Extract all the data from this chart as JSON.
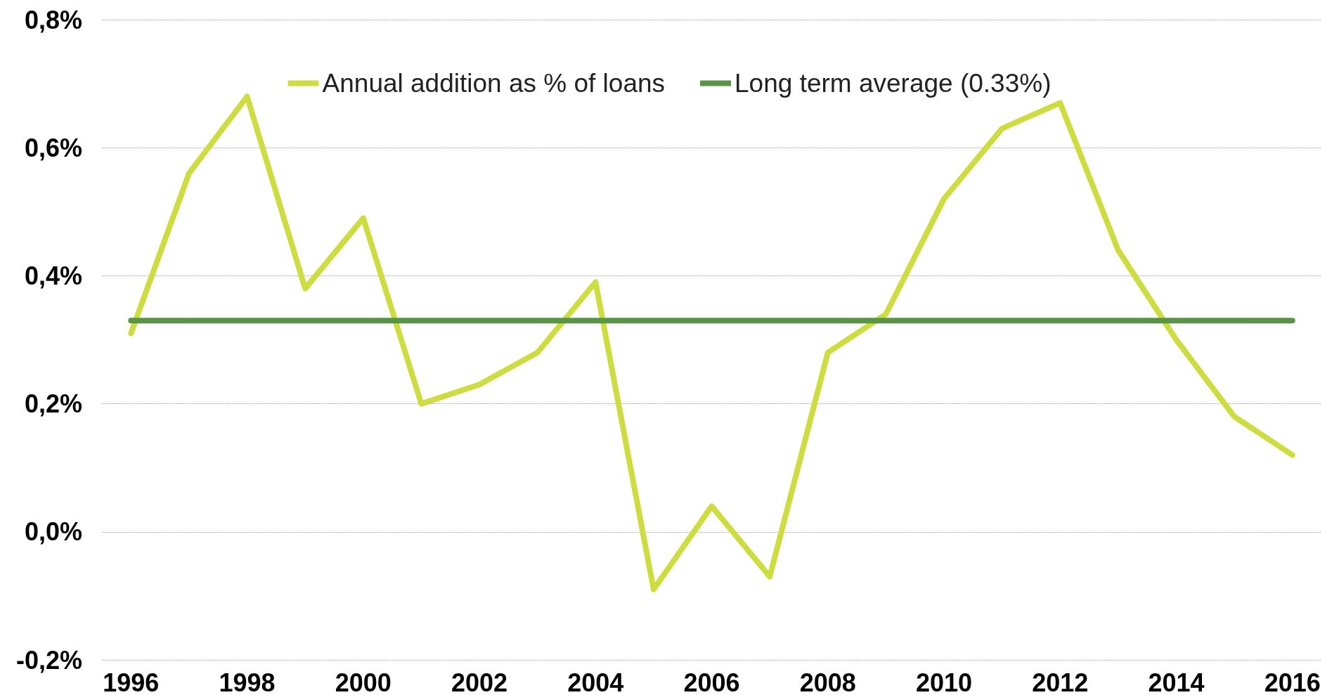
{
  "chart_data": {
    "type": "line",
    "categories": [
      "1996",
      null,
      "1998",
      null,
      "2000",
      null,
      "2002",
      null,
      "2004",
      null,
      "2006",
      null,
      "2008",
      null,
      "2010",
      null,
      "2012",
      null,
      "2014",
      null,
      "2016"
    ],
    "series": [
      {
        "name": "Annual addition as % of loans",
        "color": "#cddc3f",
        "values": [
          0.31,
          0.56,
          0.68,
          0.38,
          0.49,
          0.2,
          0.23,
          0.28,
          0.39,
          -0.09,
          0.04,
          -0.07,
          0.28,
          0.34,
          0.52,
          0.63,
          0.67,
          0.44,
          0.3,
          0.18,
          0.12
        ]
      },
      {
        "name": "Long term average (0.33%)",
        "color": "#5a9446",
        "values": [
          0.33,
          0.33,
          0.33,
          0.33,
          0.33,
          0.33,
          0.33,
          0.33,
          0.33,
          0.33,
          0.33,
          0.33,
          0.33,
          0.33,
          0.33,
          0.33,
          0.33,
          0.33,
          0.33,
          0.33,
          0.33
        ]
      }
    ],
    "ylim": [
      -0.2,
      0.8
    ],
    "yticks": [
      {
        "value": -0.2,
        "label": "-0,2%"
      },
      {
        "value": 0,
        "label": "0,0%"
      },
      {
        "value": 0.2,
        "label": "0,2%"
      },
      {
        "value": 0.4,
        "label": "0,4%"
      },
      {
        "value": 0.6,
        "label": "0,6%"
      },
      {
        "value": 0.8,
        "label": "0,8%"
      }
    ],
    "grid": "y",
    "legend": "top",
    "line_style": "solid"
  }
}
